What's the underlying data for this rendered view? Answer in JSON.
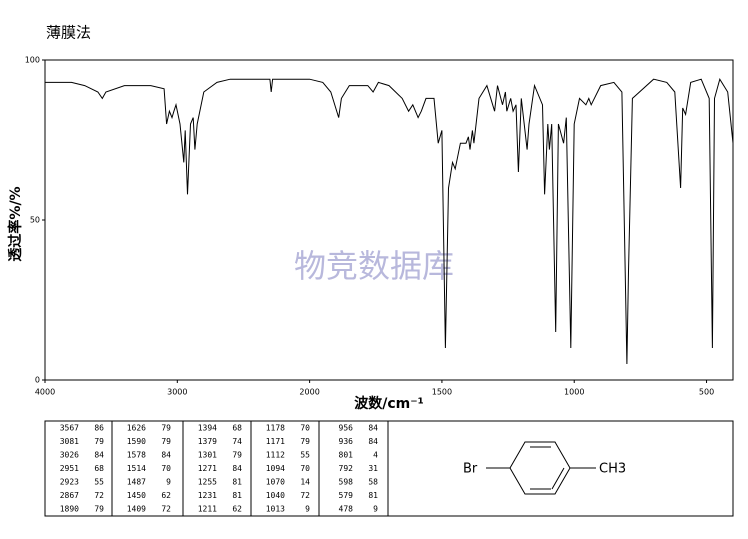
{
  "header": {
    "title": "薄膜法"
  },
  "chart_data": {
    "type": "line",
    "y_label": "透过率%/%",
    "x_label": "波数/cm⁻¹",
    "watermark": "物竞数据库",
    "xlim": [
      4000,
      400
    ],
    "x_scale_break": 2000,
    "xticks": [
      4000,
      3000,
      2000,
      1500,
      1000,
      500
    ],
    "ylim": [
      0,
      100
    ],
    "yticks": [
      0,
      50,
      100
    ],
    "series": [
      {
        "color": "#000000",
        "x": [
          4000,
          3800,
          3700,
          3600,
          3567,
          3540,
          3400,
          3200,
          3100,
          3081,
          3060,
          3040,
          3026,
          3010,
          2980,
          2951,
          2940,
          2923,
          2900,
          2880,
          2867,
          2850,
          2800,
          2700,
          2600,
          2400,
          2300,
          2290,
          2280,
          2000,
          1950,
          1920,
          1890,
          1880,
          1850,
          1780,
          1760,
          1740,
          1700,
          1650,
          1626,
          1610,
          1590,
          1578,
          1560,
          1530,
          1514,
          1500,
          1487,
          1475,
          1460,
          1450,
          1430,
          1409,
          1400,
          1394,
          1385,
          1379,
          1360,
          1330,
          1301,
          1290,
          1271,
          1260,
          1255,
          1240,
          1231,
          1220,
          1211,
          1200,
          1178,
          1171,
          1150,
          1120,
          1112,
          1100,
          1094,
          1085,
          1070,
          1060,
          1040,
          1030,
          1013,
          1000,
          980,
          956,
          945,
          936,
          900,
          850,
          820,
          801,
          795,
          780,
          700,
          650,
          620,
          598,
          590,
          579,
          560,
          520,
          490,
          478,
          470,
          450,
          420,
          400
        ],
        "values": [
          93,
          93,
          92,
          90,
          88,
          90,
          92,
          92,
          91,
          80,
          84,
          82,
          84,
          86,
          80,
          68,
          78,
          58,
          80,
          82,
          72,
          80,
          90,
          93,
          94,
          94,
          94,
          90,
          94,
          94,
          93,
          90,
          82,
          88,
          92,
          92,
          90,
          93,
          92,
          88,
          84,
          86,
          82,
          84,
          88,
          88,
          74,
          78,
          10,
          60,
          68,
          66,
          74,
          74,
          76,
          72,
          78,
          74,
          88,
          92,
          84,
          92,
          86,
          90,
          84,
          88,
          84,
          86,
          65,
          88,
          72,
          80,
          92,
          86,
          58,
          80,
          72,
          80,
          15,
          80,
          74,
          82,
          10,
          80,
          88,
          86,
          88,
          86,
          92,
          93,
          90,
          5,
          34,
          88,
          94,
          93,
          90,
          60,
          85,
          83,
          93,
          94,
          88,
          10,
          88,
          94,
          90,
          74
        ]
      }
    ]
  },
  "peak_table": {
    "columns": [
      [
        [
          "3567",
          "86"
        ],
        [
          "3081",
          "79"
        ],
        [
          "3026",
          "84"
        ],
        [
          "2951",
          "68"
        ],
        [
          "2923",
          "55"
        ],
        [
          "2867",
          "72"
        ],
        [
          "1890",
          "79"
        ]
      ],
      [
        [
          "1626",
          "79"
        ],
        [
          "1590",
          "79"
        ],
        [
          "1578",
          "84"
        ],
        [
          "1514",
          "70"
        ],
        [
          "1487",
          "9"
        ],
        [
          "1450",
          "62"
        ],
        [
          "1409",
          "72"
        ]
      ],
      [
        [
          "1394",
          "68"
        ],
        [
          "1379",
          "74"
        ],
        [
          "1301",
          "79"
        ],
        [
          "1271",
          "84"
        ],
        [
          "1255",
          "81"
        ],
        [
          "1231",
          "81"
        ],
        [
          "1211",
          "62"
        ]
      ],
      [
        [
          "1178",
          "70"
        ],
        [
          "1171",
          "79"
        ],
        [
          "1112",
          "55"
        ],
        [
          "1094",
          "70"
        ],
        [
          "1070",
          "14"
        ],
        [
          "1040",
          "72"
        ],
        [
          "1013",
          "9"
        ]
      ],
      [
        [
          "956",
          "84"
        ],
        [
          "936",
          "84"
        ],
        [
          "801",
          "4"
        ],
        [
          "792",
          "31"
        ],
        [
          "598",
          "58"
        ],
        [
          "579",
          "81"
        ],
        [
          "478",
          "9"
        ]
      ]
    ]
  },
  "structure": {
    "left_group": "Br",
    "right_group": "CH3"
  }
}
